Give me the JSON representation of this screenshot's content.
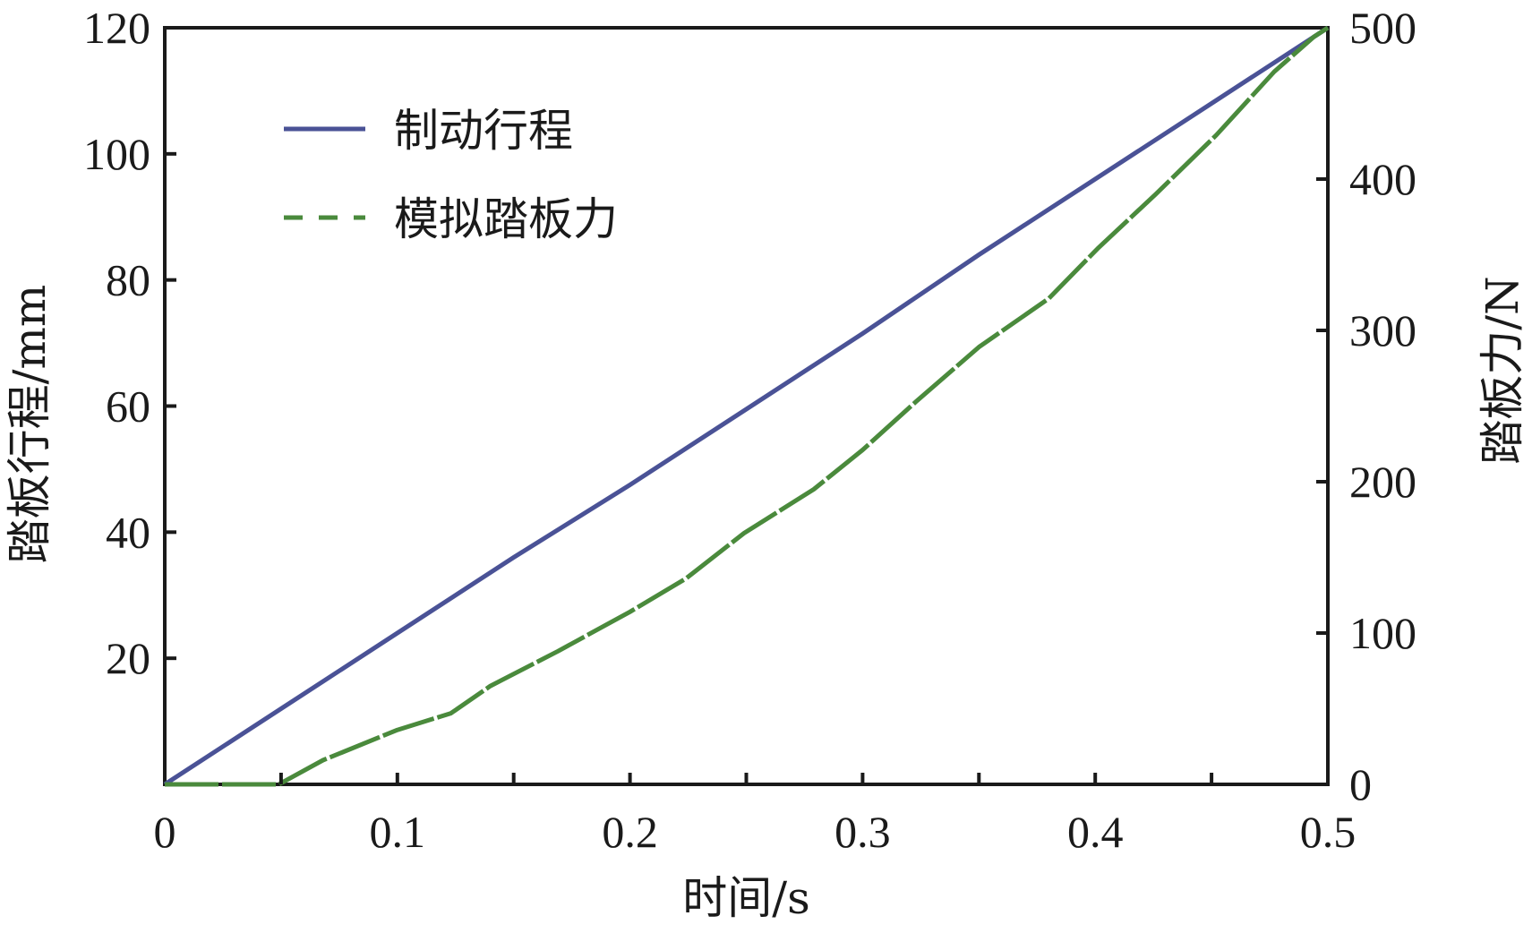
{
  "chart_data": {
    "type": "line",
    "title": "",
    "xlabel": "时间/s",
    "ylabel_left": "踏板行程/mm",
    "ylabel_right": "踏板力/N",
    "xlim": [
      0,
      0.5
    ],
    "ylim_left": [
      0,
      120
    ],
    "ylim_right": [
      0,
      500
    ],
    "x_ticks": [
      "0",
      "0.1",
      "0.2",
      "0.3",
      "0.4",
      "0.5"
    ],
    "x_minor_ticks": [
      0.05,
      0.15,
      0.25,
      0.35,
      0.45
    ],
    "y_left_ticks": [
      "20",
      "40",
      "60",
      "80",
      "100",
      "120"
    ],
    "y_right_ticks": [
      "0",
      "100",
      "200",
      "300",
      "400",
      "500"
    ],
    "grid": false,
    "legend_position": "upper left",
    "series": [
      {
        "name": "制动行程",
        "axis": "left",
        "style": "solid",
        "color": "#4a5296",
        "x": [
          0,
          0.05,
          0.1,
          0.15,
          0.2,
          0.25,
          0.3,
          0.35,
          0.4,
          0.45,
          0.5
        ],
        "values": [
          0,
          12,
          24,
          36,
          47.5,
          59.5,
          71.5,
          84,
          96,
          108,
          120
        ]
      },
      {
        "name": "模拟踏板力",
        "axis": "right",
        "style": "dashed",
        "color": "#4a8a3c",
        "x": [
          0,
          0.049,
          0.068,
          0.1,
          0.123,
          0.14,
          0.169,
          0.2,
          0.224,
          0.249,
          0.279,
          0.3,
          0.323,
          0.35,
          0.38,
          0.401,
          0.426,
          0.452,
          0.477,
          0.494,
          0.5
        ],
        "values": [
          0,
          0,
          16,
          36,
          47,
          65,
          88,
          114,
          136,
          166,
          195,
          221,
          253,
          289,
          321,
          354,
          390,
          429,
          471,
          494,
          500
        ]
      }
    ]
  },
  "legend": {
    "items": [
      {
        "label": "制动行程",
        "color": "#4a5296",
        "style": "solid"
      },
      {
        "label": "模拟踏板力",
        "color": "#4a8a3c",
        "style": "dashed"
      }
    ]
  }
}
